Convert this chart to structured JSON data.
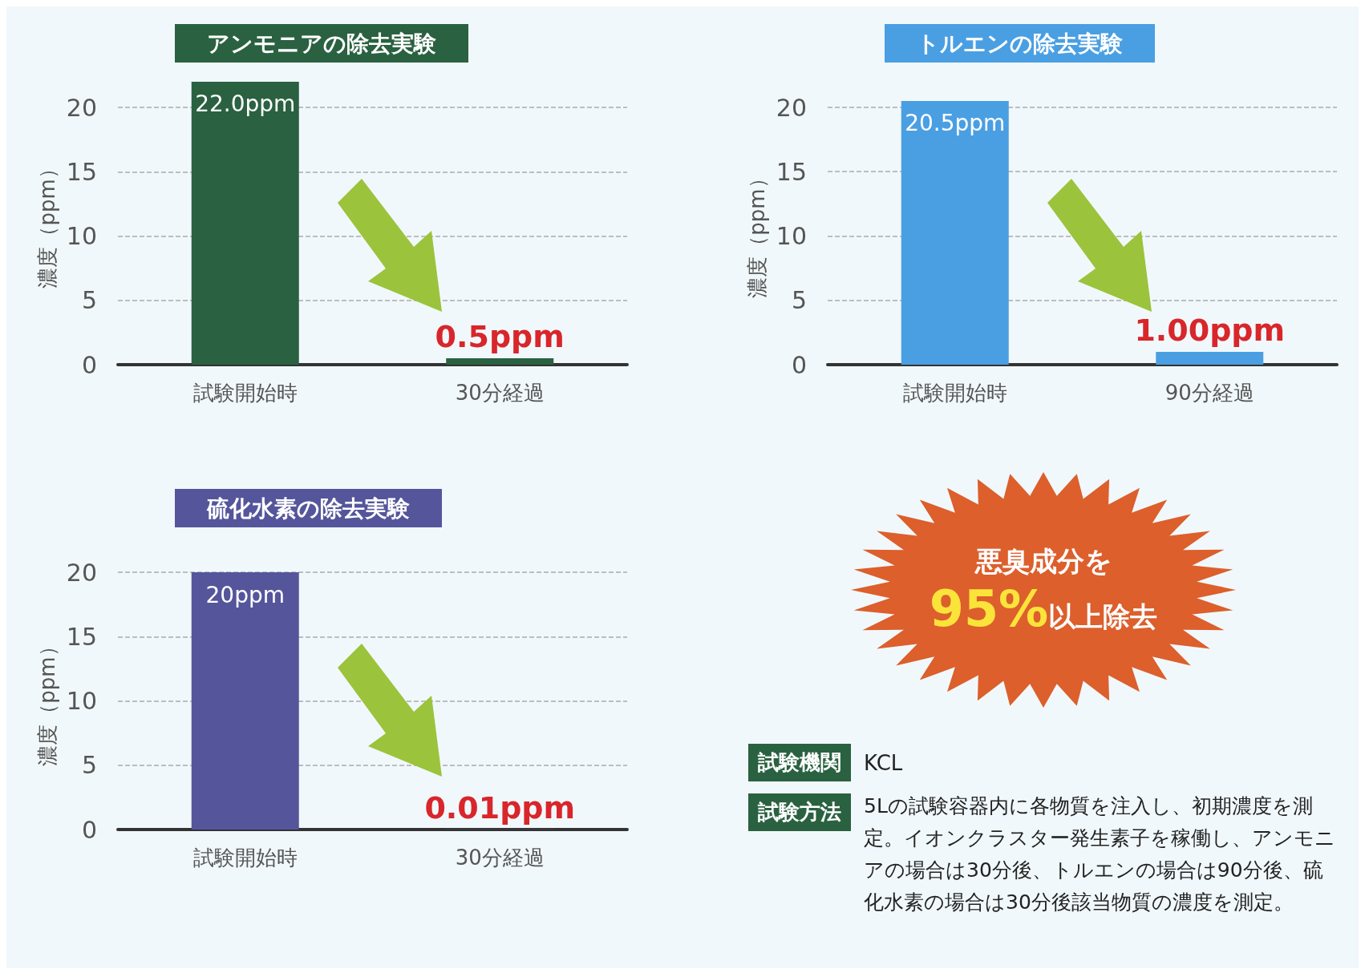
{
  "chart_data": [
    {
      "type": "bar",
      "title": "アンモニアの除去実験",
      "ylabel": "濃度（ppm）",
      "categories": [
        "試験開始時",
        "30分経過"
      ],
      "values": [
        22.0,
        0.5
      ],
      "value_labels": [
        "22.0ppm",
        "0.5ppm"
      ],
      "color": "#2a6141",
      "ylim": [
        0,
        22
      ],
      "yticks": [
        0,
        5,
        10,
        15,
        20
      ],
      "grid": "y"
    },
    {
      "type": "bar",
      "title": "トルエンの除去実験",
      "ylabel": "濃度（ppm）",
      "categories": [
        "試験開始時",
        "90分経過"
      ],
      "values": [
        20.5,
        1.0
      ],
      "value_labels": [
        "20.5ppm",
        "1.00ppm"
      ],
      "color": "#4a9fe3",
      "ylim": [
        0,
        20.5
      ],
      "yticks": [
        0,
        5,
        10,
        15,
        20
      ],
      "grid": "y"
    },
    {
      "type": "bar",
      "title": "硫化水素の除去実験",
      "ylabel": "濃度（ppm）",
      "categories": [
        "試験開始時",
        "30分経過"
      ],
      "values": [
        20,
        0.01
      ],
      "value_labels": [
        "20ppm",
        "0.01ppm"
      ],
      "color": "#55559c",
      "ylim": [
        0,
        20
      ],
      "yticks": [
        0,
        5,
        10,
        15,
        20
      ],
      "grid": "y"
    },
    {
      "type": "other",
      "annotations": [
        "悪臭成分を",
        "95%",
        "以上除去",
        "試験機関",
        "KCL",
        "試験方法",
        "5Lの試験容器内に各物質を注入し、初期濃度を測定。イオンクラスター発生素子を稼働し、アンモニアの場合は30分後、トルエンの場合は90分後、硫化水素の場合は30分後該当物質の濃度を測定。"
      ]
    }
  ]
}
